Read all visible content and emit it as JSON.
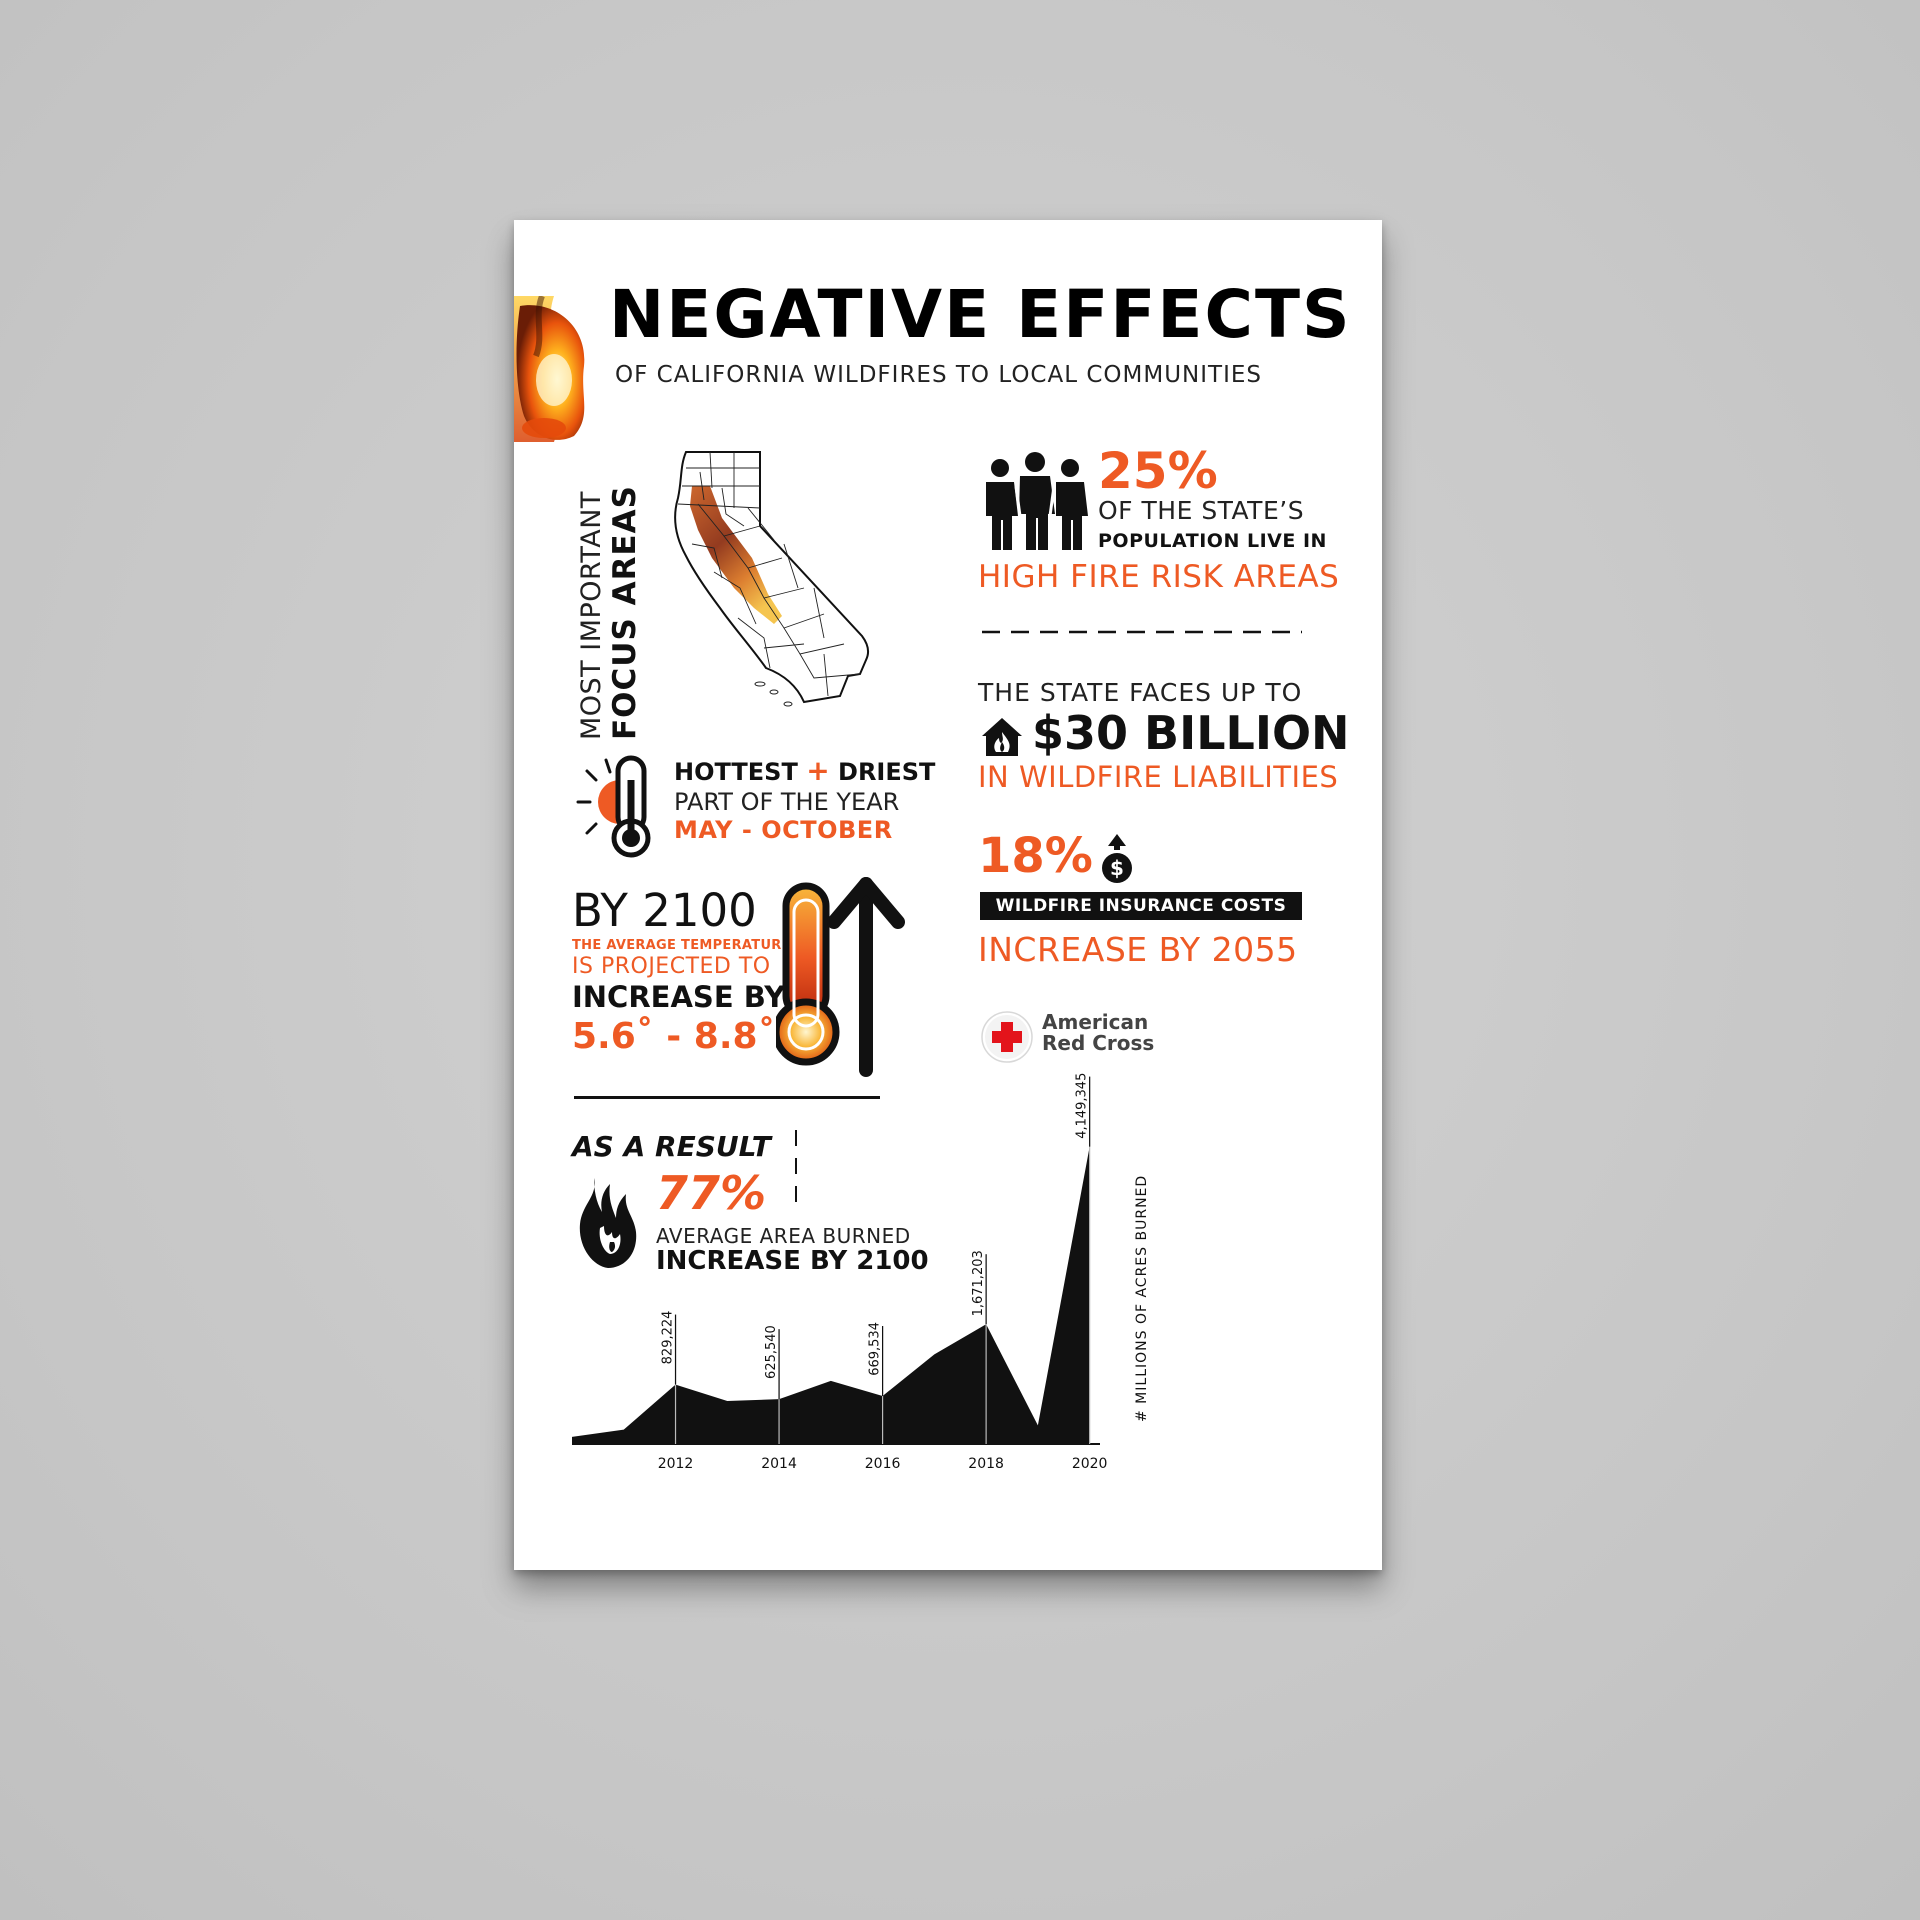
{
  "header": {
    "title": "NEGATIVE EFFECTS",
    "subtitle": "OF CALIFORNIA WILDFIRES TO LOCAL COMMUNITIES"
  },
  "focus": {
    "line1": "MOST IMPORTANT",
    "line2": "FOCUS AREAS"
  },
  "population": {
    "percent": "25%",
    "line1": "OF THE STATE’S",
    "line2": "POPULATION LIVE IN",
    "line3": "HIGH FIRE RISK AREAS"
  },
  "liabilities": {
    "line1": "THE STATE FACES UP TO",
    "amount": "$30 BILLION",
    "line3": "IN WILDFIRE LIABILITIES"
  },
  "insurance": {
    "percent": "18%",
    "banner": "WILDFIRE INSURANCE COSTS",
    "line3": "INCREASE BY 2055"
  },
  "source": {
    "line1": "American",
    "line2": "Red Cross"
  },
  "season": {
    "line1_a": "HOTTEST",
    "line1_plus": "+",
    "line1_b": "DRIEST",
    "line2": "PART OF THE YEAR",
    "line3": "MAY  -  OCTOBER"
  },
  "temperature": {
    "year": "BY 2100",
    "line2": "THE AVERAGE TEMPERATURE",
    "line3": "IS PROJECTED TO",
    "line4": "INCREASE BY",
    "range": "5.6˚ - 8.8˚"
  },
  "result": {
    "heading": "AS A RESULT",
    "percent": "77%",
    "line2": "AVERAGE AREA BURNED",
    "line3": "INCREASE BY 2100"
  },
  "colors": {
    "accent": "#ee5a24",
    "ink": "#111111",
    "redcross": "#e3141b"
  },
  "chart_data": {
    "type": "area",
    "x": [
      2010,
      2011,
      2012,
      2013,
      2014,
      2015,
      2016,
      2017,
      2018,
      2019,
      2020
    ],
    "values": [
      100000,
      200000,
      829224,
      600000,
      625540,
      880000,
      669534,
      1250000,
      1671203,
      260000,
      4149345
    ],
    "labels": [
      {
        "x": 2012,
        "text": "829,224"
      },
      {
        "x": 2014,
        "text": "625,540"
      },
      {
        "x": 2016,
        "text": "669,534"
      },
      {
        "x": 2018,
        "text": "1,671,203"
      },
      {
        "x": 2020,
        "text": "4,149,345"
      }
    ],
    "x_ticks": [
      "2012",
      "2014",
      "2016",
      "2018",
      "2020"
    ],
    "ylabel": "# MILLIONS OF ACRES BURNED",
    "xlim": [
      2010,
      2020.2
    ],
    "ylim": [
      0,
      4800000
    ],
    "grid": false
  }
}
